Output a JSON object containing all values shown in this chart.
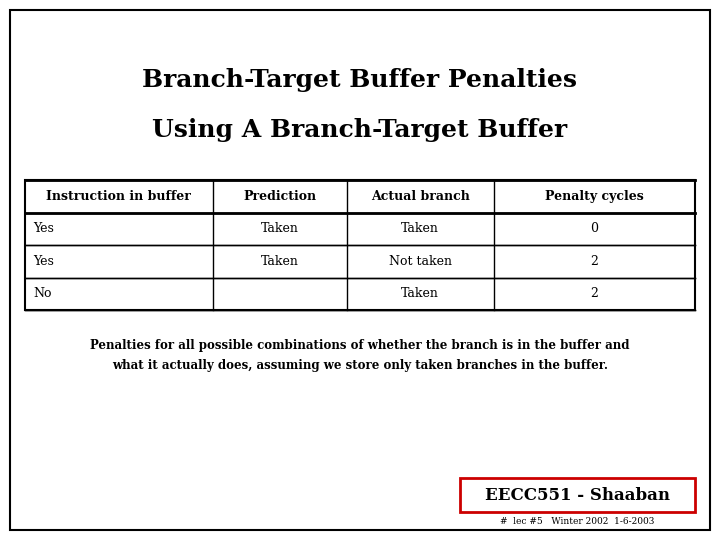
{
  "title_line1": "Branch-Target Buffer Penalties",
  "title_line2": "Using A Branch-Target Buffer",
  "title_fontsize": 18,
  "title_fontweight": "bold",
  "bg_color": "#ffffff",
  "outer_border_color": "#000000",
  "table_headers": [
    "Instruction in buffer",
    "Prediction",
    "Actual branch",
    "Penalty cycles"
  ],
  "table_rows": [
    [
      "Yes",
      "Taken",
      "Taken",
      "0"
    ],
    [
      "Yes",
      "Taken",
      "Not taken",
      "2"
    ],
    [
      "No",
      "",
      "Taken",
      "2"
    ]
  ],
  "caption_line1": "Penalties for all possible combinations of whether the branch is in the buffer and",
  "caption_line2": "what it actually does, assuming we store only taken branches in the buffer.",
  "footer_label": "EECC551 - Shaaban",
  "footer_sublabel": "#  lec #5   Winter 2002  1-6-2003",
  "footer_box_color": "#cc0000",
  "header_fontsize": 9,
  "cell_fontsize": 9,
  "caption_fontsize": 8.5
}
